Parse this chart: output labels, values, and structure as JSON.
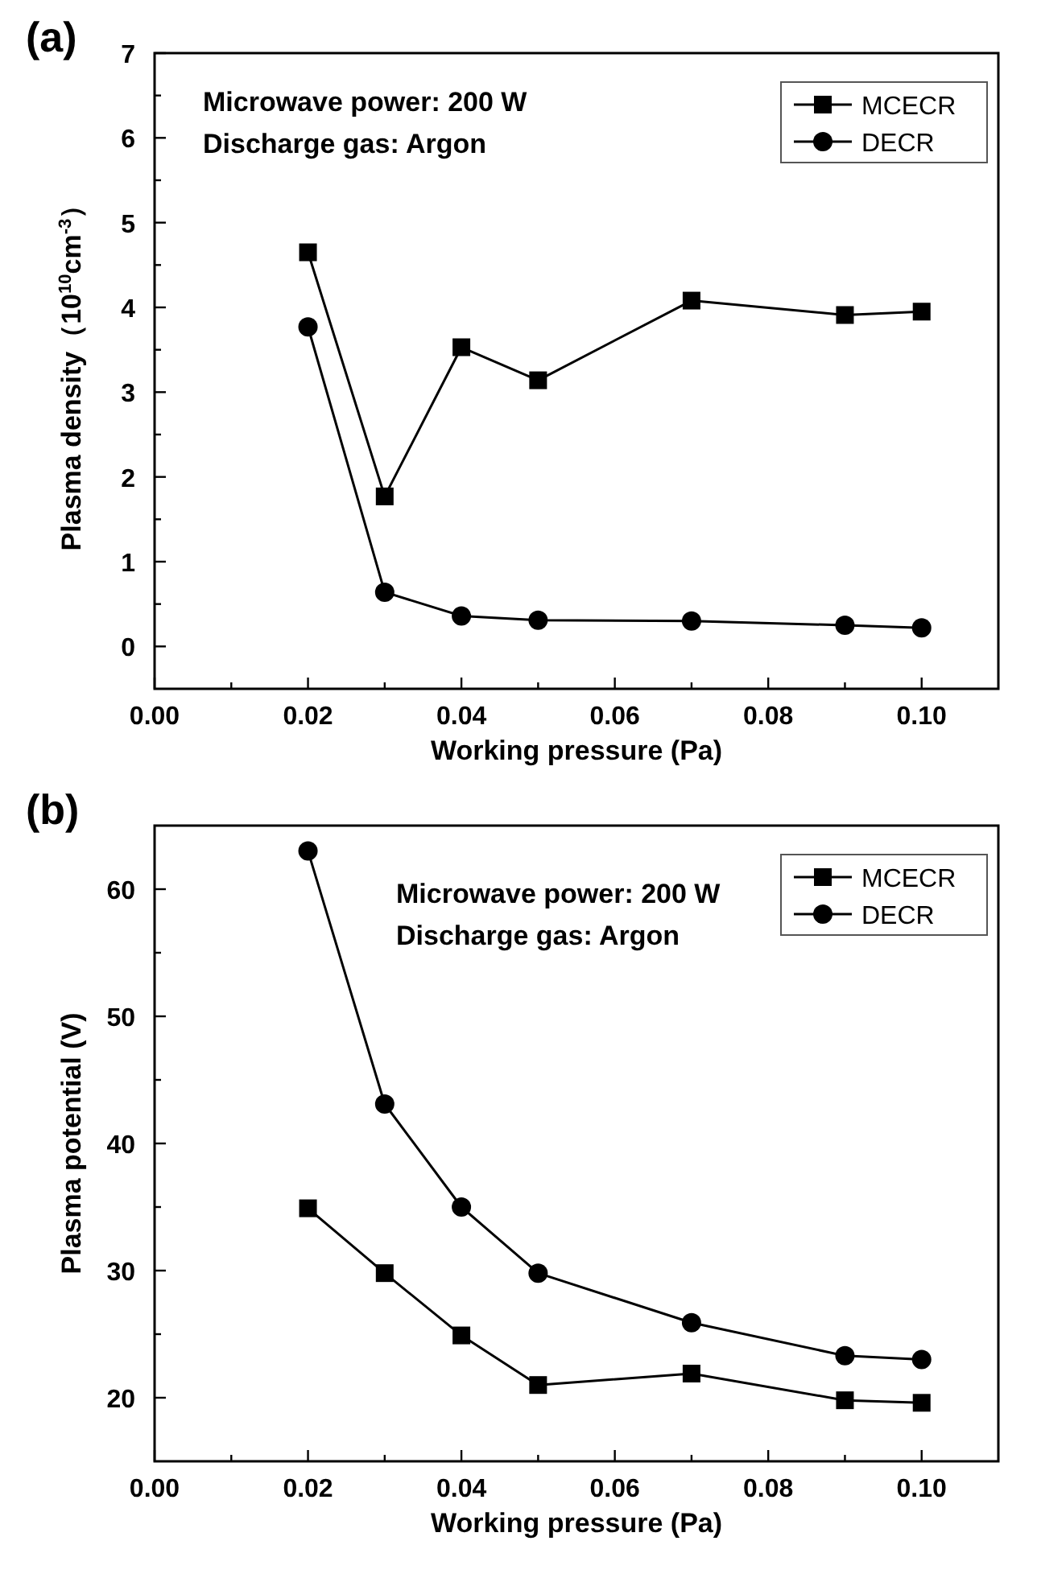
{
  "chart_data": [
    {
      "type": "line",
      "title": "(a)",
      "xlabel": "Working pressure (Pa)",
      "ylabel": "Plasma density（10$^{10}$cm$^{-3}$）",
      "x": [
        0.02,
        0.03,
        0.04,
        0.05,
        0.07,
        0.09,
        0.1
      ],
      "series": [
        {
          "name": "MCECR",
          "color": "#000000",
          "marker": "square",
          "values": [
            4.65,
            1.77,
            3.53,
            3.14,
            4.08,
            3.91,
            3.95
          ]
        },
        {
          "name": "DECR",
          "color": "#000000",
          "marker": "circle",
          "values": [
            3.77,
            0.64,
            0.36,
            0.31,
            0.3,
            0.25,
            0.22
          ]
        }
      ],
      "xlim": [
        0,
        0.11
      ],
      "xticks": [
        {
          "value": 0,
          "label": "0.00"
        },
        {
          "value": 0.01,
          "label": null
        },
        {
          "value": 0.02,
          "label": "0.02"
        },
        {
          "value": 0.03,
          "label": null
        },
        {
          "value": 0.04,
          "label": "0.04"
        },
        {
          "value": 0.05,
          "label": null
        },
        {
          "value": 0.06,
          "label": "0.06"
        },
        {
          "value": 0.07,
          "label": null
        },
        {
          "value": 0.08,
          "label": "0.08"
        },
        {
          "value": 0.09,
          "label": null
        },
        {
          "value": 0.1,
          "label": "0.10"
        }
      ],
      "ylim": [
        -0.5,
        7
      ],
      "yticks": [
        0,
        {
          "value": 0.5,
          "label": null
        },
        1,
        {
          "value": 1.5,
          "label": null
        },
        2,
        {
          "value": 2.5,
          "label": null
        },
        3,
        {
          "value": 3.5,
          "label": null
        },
        4,
        {
          "value": 4.5,
          "label": null
        },
        5,
        {
          "value": 5.5,
          "label": null
        },
        6,
        {
          "value": 6.5,
          "label": null
        },
        7
      ],
      "annotations": [
        "Microwave power: 200 W",
        "Discharge gas: Argon"
      ],
      "legend": "top right",
      "grid": false,
      "line_style": "solid"
    },
    {
      "type": "line",
      "title": "(b)",
      "xlabel": "Working pressure (Pa)",
      "ylabel": "Plasma potential (V)",
      "x": [
        0.02,
        0.03,
        0.04,
        0.05,
        0.07,
        0.09,
        0.1
      ],
      "series": [
        {
          "name": "MCECR",
          "color": "#000000",
          "marker": "square",
          "values": [
            34.9,
            29.8,
            24.9,
            21.0,
            21.9,
            19.8,
            19.6
          ]
        },
        {
          "name": "DECR",
          "color": "#000000",
          "marker": "circle",
          "values": [
            63.0,
            43.1,
            35.0,
            29.8,
            25.9,
            23.3,
            23.0
          ]
        }
      ],
      "xlim": [
        0,
        0.11
      ],
      "xticks": [
        {
          "value": 0,
          "label": "0.00"
        },
        {
          "value": 0.01,
          "label": null
        },
        {
          "value": 0.02,
          "label": "0.02"
        },
        {
          "value": 0.03,
          "label": null
        },
        {
          "value": 0.04,
          "label": "0.04"
        },
        {
          "value": 0.05,
          "label": null
        },
        {
          "value": 0.06,
          "label": "0.06"
        },
        {
          "value": 0.07,
          "label": null
        },
        {
          "value": 0.08,
          "label": "0.08"
        },
        {
          "value": 0.09,
          "label": null
        },
        {
          "value": 0.1,
          "label": "0.10"
        }
      ],
      "ylim": [
        15,
        65
      ],
      "yticks": [
        20,
        {
          "value": 25,
          "label": null
        },
        30,
        {
          "value": 35,
          "label": null
        },
        40,
        {
          "value": 45,
          "label": null
        },
        50,
        {
          "value": 55,
          "label": null
        },
        60
      ],
      "annotations": [
        "Microwave power: 200 W",
        "Discharge gas: Argon"
      ],
      "legend": "top right",
      "grid": false,
      "line_style": "solid"
    }
  ]
}
